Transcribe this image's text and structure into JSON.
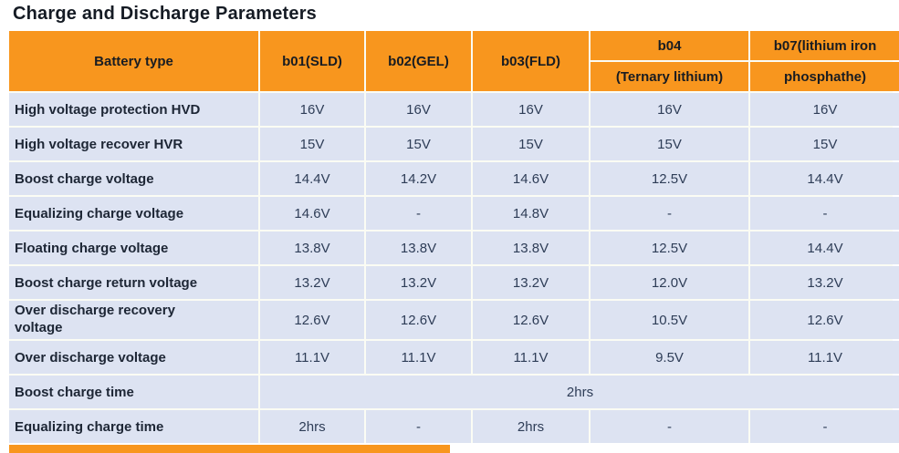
{
  "page": {
    "title": "Charge and Discharge Parameters"
  },
  "colors": {
    "header_orange": "#f8961e",
    "row_background": "#dde3f2",
    "title_text": "#151b24",
    "label_text": "#1d2635",
    "value_text": "#2e3d57"
  },
  "table": {
    "header": {
      "battery_type": "Battery type",
      "b01": "b01(SLD)",
      "b02": "b02(GEL)",
      "b03": "b03(FLD)",
      "b04_line1": "b04",
      "b04_line2": "(Ternary lithium)",
      "b07_line1": "b07(lithium iron",
      "b07_line2": "phosphathe)"
    },
    "rows": [
      {
        "label": "High voltage protection HVD",
        "values": [
          "16V",
          "16V",
          "16V",
          "16V",
          "16V"
        ]
      },
      {
        "label": "High voltage recover HVR",
        "values": [
          "15V",
          "15V",
          "15V",
          "15V",
          "15V"
        ]
      },
      {
        "label": "Boost charge voltage",
        "values": [
          "14.4V",
          "14.2V",
          "14.6V",
          "12.5V",
          "14.4V"
        ]
      },
      {
        "label": "Equalizing charge voltage",
        "values": [
          "14.6V",
          "-",
          "14.8V",
          "-",
          "-"
        ]
      },
      {
        "label": "Floating charge voltage",
        "values": [
          "13.8V",
          "13.8V",
          "13.8V",
          "12.5V",
          "14.4V"
        ]
      },
      {
        "label": "Boost charge return voltage",
        "values": [
          "13.2V",
          "13.2V",
          "13.2V",
          "12.0V",
          "13.2V"
        ]
      },
      {
        "label": "Over discharge recovery voltage",
        "values": [
          "12.6V",
          "12.6V",
          "12.6V",
          "10.5V",
          "12.6V"
        ]
      },
      {
        "label": "Over discharge voltage",
        "values": [
          "11.1V",
          "11.1V",
          "11.1V",
          "9.5V",
          "11.1V"
        ]
      },
      {
        "label": "Boost charge time",
        "merged": true,
        "values": [
          "2hrs"
        ]
      },
      {
        "label": "Equalizing charge time",
        "values": [
          "2hrs",
          "-",
          "2hrs",
          "-",
          "-"
        ]
      }
    ]
  }
}
